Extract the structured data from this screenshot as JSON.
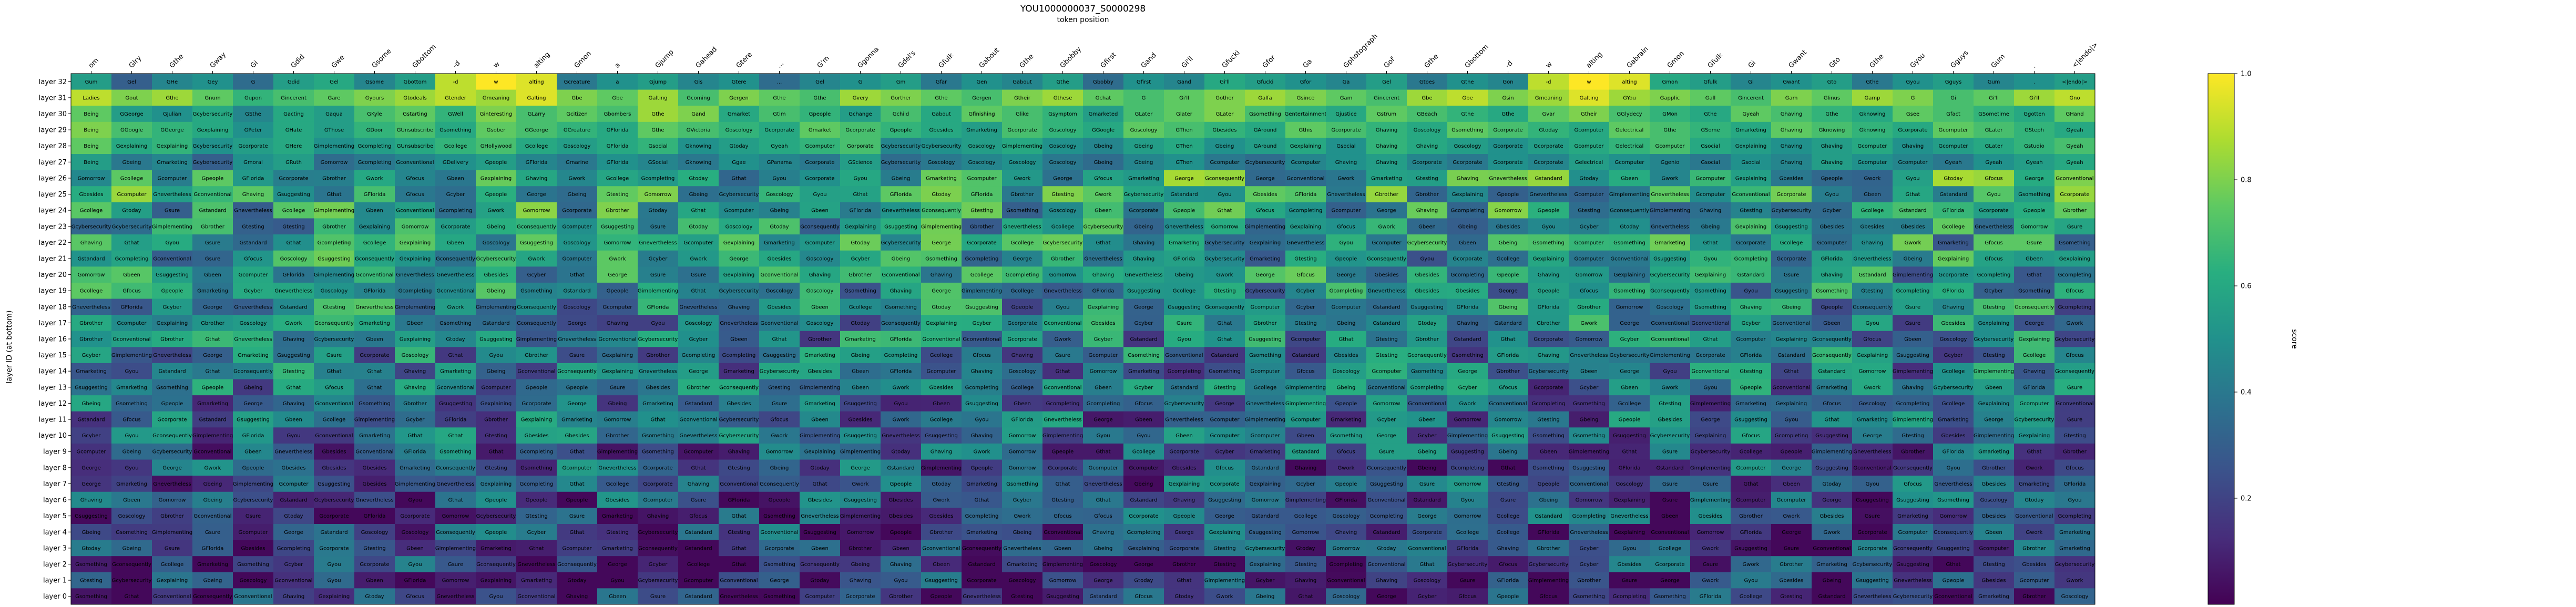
{
  "chart_data": {
    "type": "heatmap",
    "title": "YOU1000000037_S0000298",
    "subtitle": "token position",
    "ylabel": "layer ID (at bottom)",
    "colorbar_label": "score",
    "colorbar_ticks": [
      "0.2",
      "0.4",
      "0.6",
      "0.8",
      "1.0"
    ],
    "colorbar_tick_values": [
      0.2,
      0.4,
      0.6,
      0.8,
      1.0
    ],
    "value_range": [
      0.0,
      1.0
    ],
    "colormap": "viridis",
    "x_tokens": [
      "om",
      "Glry",
      "Gthe",
      "Gway",
      "Gi",
      "Gdid",
      "Gwe",
      "Gsome",
      "Gbottom",
      "-d",
      "w",
      "alting",
      "Gmon",
      "a",
      "Gjump",
      "Gahead",
      "Gtere",
      "...",
      "G'm",
      "Ggonna",
      "Gdel's",
      "Gfulk",
      "Gabout",
      "Gthe",
      "Gbobby",
      "Gfirst",
      "Gand",
      "Gi'll",
      "Gfucki",
      "Gfor",
      "Ga",
      "Gphotograph",
      "Gof",
      "Gthe",
      "Gbottom",
      "-d",
      "w",
      "alting",
      "Gabrain",
      "Gmon",
      "Gfulk",
      "Gi",
      "Gwant",
      "Gto",
      "Gthe",
      "Gyou",
      "Gguys",
      "Gum",
      ".",
      "<|endo|>"
    ],
    "y_layers": [
      "layer 32",
      "layer 31",
      "layer 30",
      "layer 29",
      "layer 28",
      "layer 27",
      "layer 26",
      "layer 25",
      "layer 24",
      "layer 23",
      "layer 22",
      "layer 21",
      "layer 20",
      "layer 19",
      "layer 18",
      "layer 17",
      "layer 16",
      "layer 15",
      "layer 14",
      "layer 13",
      "layer 12",
      "layer 11",
      "layer 10",
      "layer 9",
      "layer 8",
      "layer 7",
      "layer 6",
      "layer 5",
      "layer 4",
      "layer 3",
      "layer 2",
      "layer 1",
      "layer 0"
    ],
    "cell_palette": [
      "Gsomething",
      "Gexplaining",
      "Gcybersecurity",
      "Gomorrow",
      "Gcollege",
      "Gbeing",
      "Gcompleting",
      "Gconventional",
      "GFlorida",
      "Gtesting",
      "Gfocus",
      "George",
      "Goscology",
      "Gimplementing",
      "Gcorporate",
      "Gbrother",
      "Gcomputer",
      "Gbeen",
      "Gbesides",
      "Gpeople",
      "Gnevertheless",
      "Gwork",
      "Gsure",
      "Gyou",
      "Gsuggesting",
      "Gcyber",
      "Ghaving",
      "Gconsequently",
      "Gmarketing",
      "Gstandard",
      "Gthat",
      "Gtoday"
    ],
    "rows": [
      {
        "tokens": [
          "Gum",
          "Gel",
          "GHe",
          "Gey",
          "G",
          "Gdid",
          "Gel",
          "Gsome",
          "Gbottom",
          "-d",
          "w",
          "alting",
          "Gcreature",
          "a",
          "Gjump",
          "Gis",
          "Gtere",
          "...",
          "Gel",
          "G",
          "Gm",
          "Gfar",
          "Gen",
          "Gabout",
          "Gthe",
          "Gbobby",
          "Gfirst",
          "Gand",
          "Gi'll",
          "Gfucki",
          "Gfor",
          "Ga",
          "Gel",
          "Gtoes",
          "Gthe",
          "Gon",
          "-d",
          "w",
          "alting",
          "Gmon",
          "Gfulk",
          "Gi",
          "Gwant",
          "Gto",
          "Gthe",
          "Gyou",
          "Gguys",
          "Gum",
          ".",
          "<|endo|>"
        ],
        "values": [
          0.55,
          0.3,
          0.45,
          0.5,
          0.35,
          0.55,
          0.6,
          0.45,
          0.55,
          0.9,
          1.0,
          0.95,
          0.4,
          0.5,
          0.55,
          0.45,
          0.5,
          0.35,
          0.45,
          0.5,
          0.55,
          0.4,
          0.5,
          0.45,
          0.55,
          0.35,
          0.5,
          0.45,
          0.6,
          0.55,
          0.5,
          0.45,
          0.55,
          0.4,
          0.5,
          0.45,
          0.9,
          1.0,
          0.95,
          0.6,
          0.55,
          0.45,
          0.5,
          0.55,
          0.4,
          0.5,
          0.55,
          0.45,
          0.5,
          0.55
        ]
      },
      {
        "tokens": [
          "Ladies",
          "Gout",
          "Gthe",
          "Gnum",
          "Gupon",
          "Gincerent",
          "Gare",
          "Gyours",
          "Gtodeals",
          "Gtender",
          "Gmeaning",
          "Galting",
          "Gbe",
          "Gbe",
          "Galting",
          "Gcoming",
          "Gergen",
          "Gthe",
          "Gthe",
          "Gvery",
          "Gorther",
          "Gthe",
          "Gergen",
          "Gtheir",
          "Gthese",
          "Gchat",
          "G",
          "Gi'll",
          "Gother",
          "Galfa",
          "Gsince",
          "Gam",
          "Gincerent",
          "Gbe",
          "Gbe",
          "Gsin",
          "Gmeaning",
          "Galting",
          "GYou",
          "Gapplic",
          "Gall",
          "Gincerent",
          "Gam",
          "Glinus",
          "Gamp",
          "G",
          "Gi",
          "Gi'll",
          "Gi'll",
          "Gno"
        ],
        "values": [
          0.9,
          0.8,
          0.85,
          0.75,
          0.65,
          0.7,
          0.75,
          0.8,
          0.85,
          0.9,
          0.85,
          0.95,
          0.8,
          0.75,
          0.85,
          0.7,
          0.8,
          0.75,
          0.7,
          0.85,
          0.8,
          0.75,
          0.7,
          0.8,
          0.85,
          0.75,
          0.7,
          0.75,
          0.8,
          0.85,
          0.8,
          0.75,
          0.7,
          0.85,
          0.9,
          0.8,
          0.85,
          0.95,
          0.85,
          0.8,
          0.75,
          0.7,
          0.8,
          0.75,
          0.85,
          0.8,
          0.7,
          0.75,
          0.85,
          0.9
        ]
      },
      {
        "tokens": [
          "Being",
          "GGeorge",
          "GJulian",
          "Gcybersecurity",
          "GSthe",
          "Gacting",
          "Gaqua",
          "GKyle",
          "Gstarting",
          "GWell",
          "Ginteresting",
          "GLarry",
          "Gcitizen",
          "Gbombers",
          "Gthe",
          "Gand",
          "Gmarket",
          "Gtim",
          "Gpeople",
          "Gchange",
          "Gchild",
          "Gabout",
          "Gfinishing",
          "Glike",
          "Gsymptom",
          "Gmarketed",
          "GLater",
          "Glater",
          "GLater",
          "Gsomething",
          "Gentertainment",
          "Gjustice",
          "Gstrum",
          "GBeach",
          "Gthe",
          "Gthe",
          "Gvar",
          "Gtheir",
          "GGlydecy",
          "GMon",
          "Gthe",
          "Gyeah",
          "Ghaving",
          "Gthe",
          "Gknowing",
          "Gsee",
          "Gfact",
          "GSometime",
          "Ggotten",
          "GHand"
        ],
        "values": [
          0.75,
          0.55,
          0.5,
          0.6,
          0.45,
          0.6,
          0.55,
          0.7,
          0.75,
          0.65,
          0.8,
          0.7,
          0.75,
          0.7,
          0.85,
          0.8,
          0.6,
          0.7,
          0.65,
          0.55,
          0.7,
          0.6,
          0.75,
          0.7,
          0.65,
          0.55,
          0.7,
          0.75,
          0.8,
          0.7,
          0.65,
          0.6,
          0.75,
          0.7,
          0.65,
          0.6,
          0.75,
          0.8,
          0.7,
          0.65,
          0.6,
          0.75,
          0.7,
          0.65,
          0.6,
          0.75,
          0.7,
          0.65,
          0.6,
          0.75
        ]
      },
      {
        "tokens": [
          "Being",
          "GGoogle",
          "GGeorge",
          "Gexplaining",
          "GPeter",
          "GHate",
          "GThose",
          "GDoor",
          "GUnsubscribe",
          "Gsomething",
          "Gsober",
          "GGeorge",
          "GCreature",
          "GFlorida",
          "Gthe",
          "GVictoria",
          "Goscology",
          "Gcorporate",
          "Gmarket",
          "Gcorporate",
          "Gpeople",
          "Gbesides",
          "Gmarketing",
          "Gcorporate",
          "Goscology",
          "GGoogle",
          "Goscology",
          "GThen",
          "Gbesides",
          "GAround",
          "Gthis",
          "Gcorporate",
          "Ghaving",
          "Goscology",
          "Gsomething",
          "Gcorporate",
          "Gtoday",
          "Gcomputer",
          "Gelectrical",
          "Gthe",
          "GSome",
          "Gmarketing",
          "Ghaving",
          "Gknowing",
          "Gknowing",
          "Gcorporate",
          "Gcomputer",
          "GLater",
          "GSteph",
          "Gyeah"
        ],
        "values": [
          0.8,
          0.7,
          0.65,
          0.6,
          0.5,
          0.6,
          0.55,
          0.65,
          0.7,
          0.6,
          0.75,
          0.7,
          0.65,
          0.6,
          0.75,
          0.7,
          0.65,
          0.6,
          0.75,
          0.7,
          0.65,
          0.6,
          0.55,
          0.7,
          0.65,
          0.6,
          0.75,
          0.7,
          0.65,
          0.6,
          0.75,
          0.7,
          0.65,
          0.6,
          0.75,
          0.7,
          0.65,
          0.6,
          0.75,
          0.7,
          0.65,
          0.6,
          0.75,
          0.7,
          0.65,
          0.6,
          0.75,
          0.7,
          0.65,
          0.6
        ]
      },
      {
        "tokens": [
          "Being",
          "Gexplaining",
          "Gexplaining",
          "Gcybersecurity",
          "Gcorporate",
          "GHere",
          "Gimplementing",
          "Gcompleting",
          "GUnsubscribe",
          "Gcollege",
          "GHollywood",
          "Gcollege",
          "Goscology",
          "GFlorida",
          "Gsocial",
          "Gknowing",
          "Gtoday",
          "Gyeah",
          "Gcomputer",
          "Gorporate",
          "Gcybersecurity",
          "Gcybersecurity",
          "Goscology",
          "Gimplementing",
          "Goscology",
          "Gbeing",
          "Gbeing",
          "GThen",
          "Gbeing",
          "GAround",
          "Gexplaining",
          "Gsocial",
          "Ghaving",
          "Ghaving",
          "Goscology",
          "Gcorporate",
          "Gcorporate",
          "Gcomputer",
          "Gelectrical",
          "Gcomputer",
          "Gsocial",
          "Gexplaining",
          "Ghaving",
          "Ghaving",
          "Gcomputer",
          "Ghaving",
          "Gcomputer",
          "GLater",
          "Gstudio",
          "Gyeah"
        ],
        "values": [
          0.75,
          0.6,
          0.65,
          0.5,
          0.55,
          0.6,
          0.5,
          0.55,
          0.6,
          0.65,
          0.7,
          0.6,
          0.55,
          0.6,
          0.65,
          0.5,
          0.55,
          0.6,
          0.65,
          0.7,
          0.45,
          0.5,
          0.55,
          0.6,
          0.5,
          0.45,
          0.55,
          0.6,
          0.5,
          0.55,
          0.6,
          0.5,
          0.65,
          0.6,
          0.55,
          0.5,
          0.55,
          0.6,
          0.65,
          0.7,
          0.6,
          0.55,
          0.5,
          0.55,
          0.6,
          0.5,
          0.55,
          0.6,
          0.65,
          0.7
        ]
      },
      {
        "tokens": [
          "Being",
          "Gbeing",
          "Gmarketing",
          "Gcybersecurity",
          "Gmoral",
          "GRuth",
          "Gomorrow",
          "Gcompleting",
          "Gconventional",
          "GDelivery",
          "Gpeople",
          "GFlorida",
          "Gmarine",
          "GFlorida",
          "GSocial",
          "Gknowing",
          "Ggae",
          "GPanama",
          "Gcorporate",
          "GScience",
          "Gcybersecurity",
          "Goscology",
          "Goscology",
          "Goscology",
          "Goscology",
          "Gbeing",
          "Gbeing",
          "GThen",
          "Gcomputer",
          "Gcybersecurity",
          "Gcomputer",
          "Ghaving",
          "Ghaving",
          "Gcorporate",
          "Gcorporate",
          "Gcorporate",
          "Gcorporate",
          "Gelectrical",
          "Gcomputer",
          "Ggenio",
          "Gsocial",
          "Gsocial",
          "Ghaving",
          "Ghaving",
          "Gcomputer",
          "Gcomputer",
          "Gyeah",
          "Gyeah",
          "Gyeah",
          "Gyeah"
        ],
        "values": [
          0.55,
          0.4,
          0.45,
          0.3,
          0.5,
          0.55,
          0.35,
          0.4,
          0.45,
          0.5,
          0.55,
          0.45,
          0.4,
          0.5,
          0.45,
          0.4,
          0.5,
          0.45,
          0.4,
          0.55,
          0.35,
          0.4,
          0.45,
          0.5,
          0.4,
          0.35,
          0.45,
          0.5,
          0.4,
          0.35,
          0.45,
          0.5,
          0.55,
          0.45,
          0.4,
          0.5,
          0.45,
          0.55,
          0.5,
          0.45,
          0.4,
          0.5,
          0.45,
          0.55,
          0.5,
          0.45,
          0.4,
          0.5,
          0.55,
          0.6
        ]
      }
    ]
  }
}
